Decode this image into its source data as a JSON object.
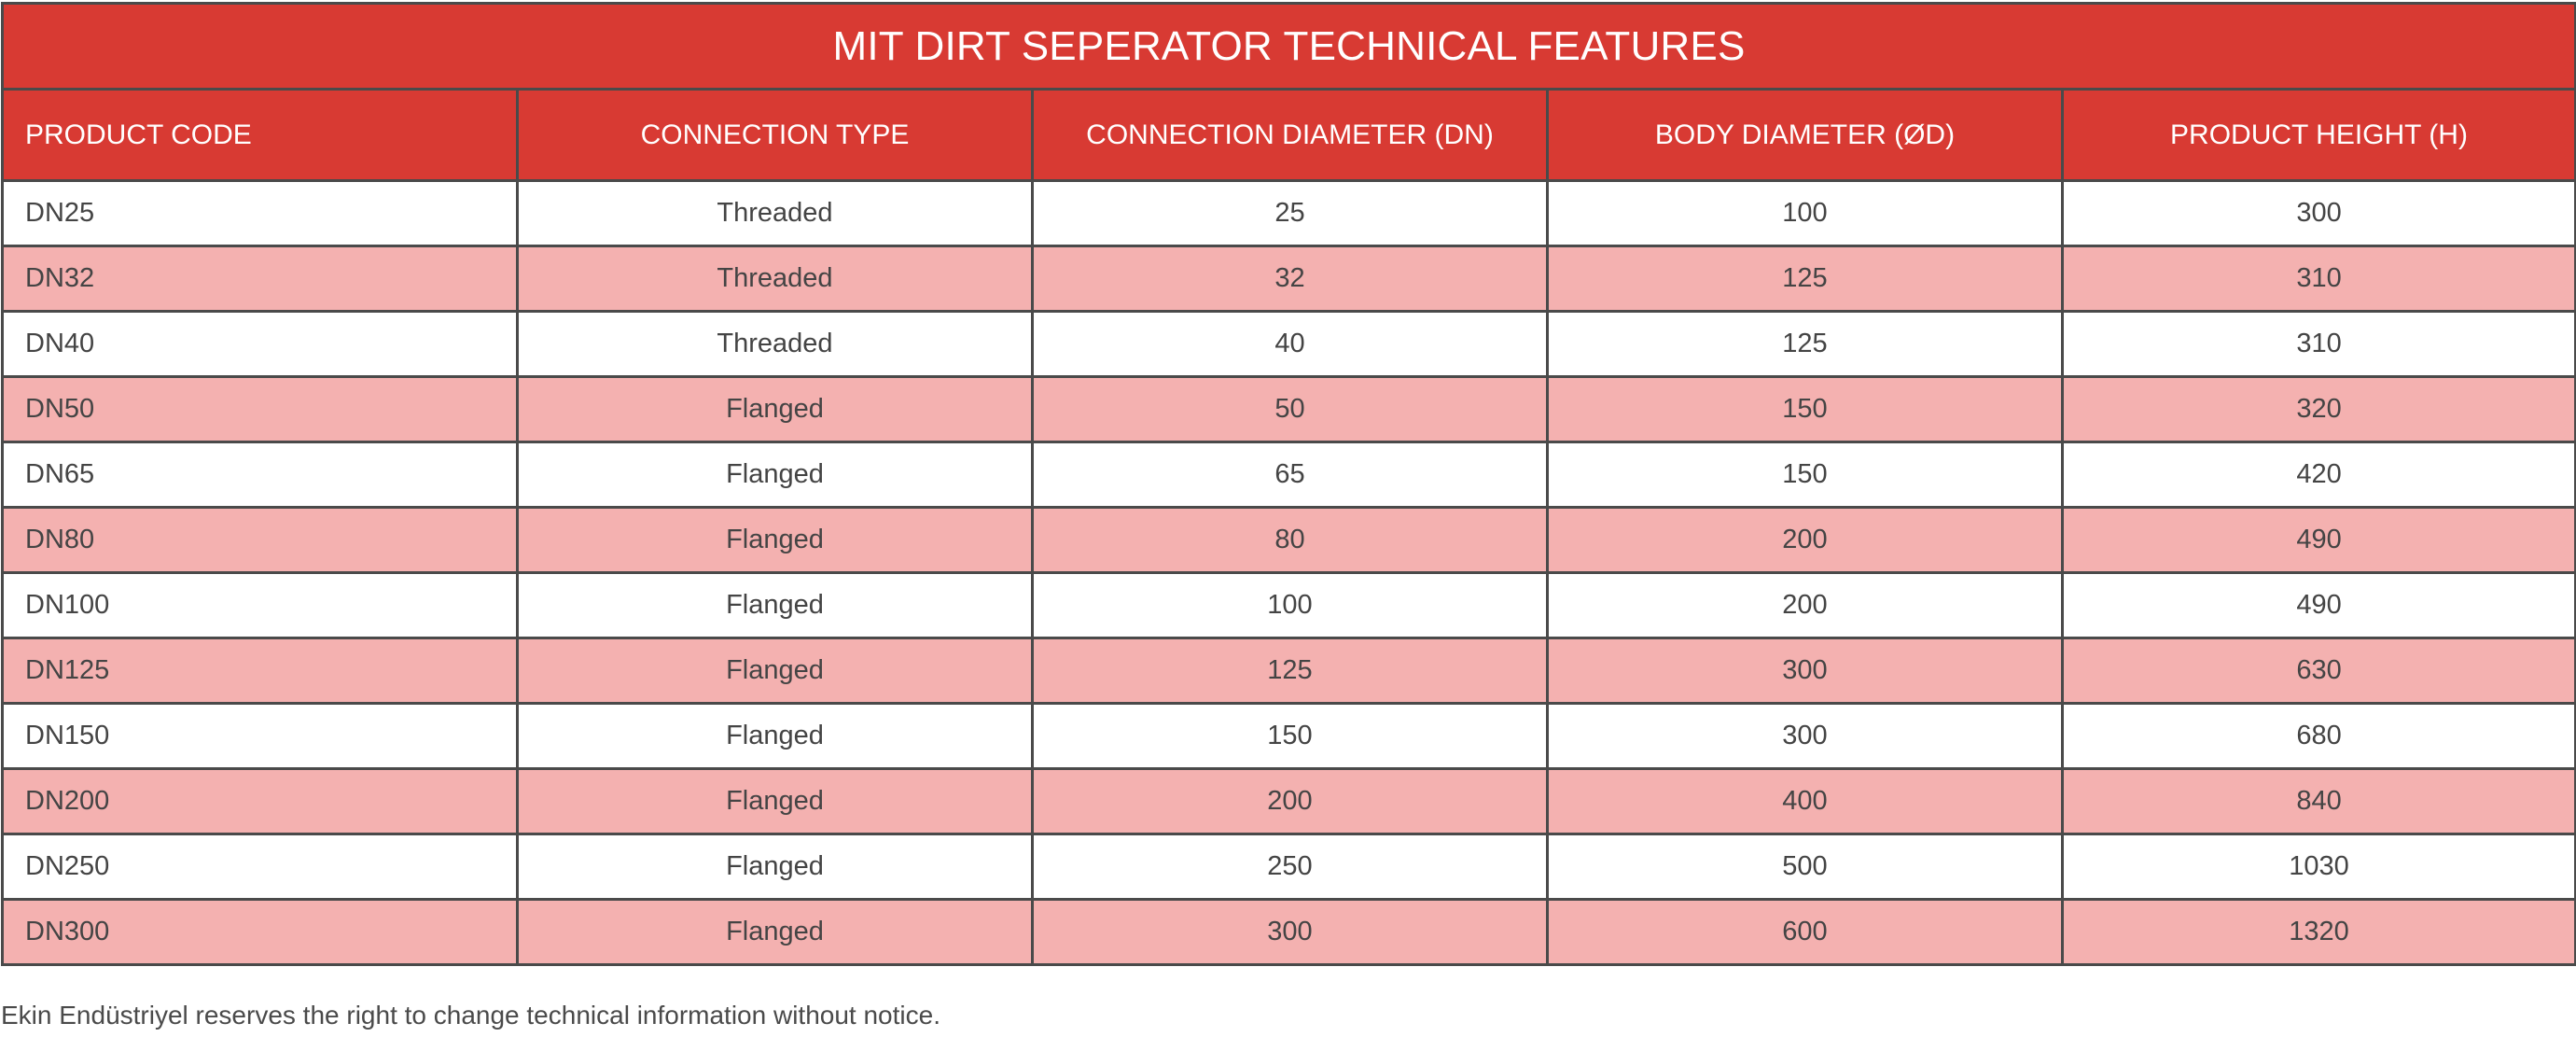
{
  "table": {
    "title": "MIT DIRT SEPERATOR TECHNICAL FEATURES",
    "headers": [
      "PRODUCT CODE",
      "CONNECTION TYPE",
      "CONNECTION DIAMETER (DN)",
      "BODY DIAMETER (ØD)",
      "PRODUCT HEIGHT (H)"
    ],
    "rows": [
      [
        "DN25",
        "Threaded",
        "25",
        "100",
        "300"
      ],
      [
        "DN32",
        "Threaded",
        "32",
        "125",
        "310"
      ],
      [
        "DN40",
        "Threaded",
        "40",
        "125",
        "310"
      ],
      [
        "DN50",
        "Flanged",
        "50",
        "150",
        "320"
      ],
      [
        "DN65",
        "Flanged",
        "65",
        "150",
        "420"
      ],
      [
        "DN80",
        "Flanged",
        "80",
        "200",
        "490"
      ],
      [
        "DN100",
        "Flanged",
        "100",
        "200",
        "490"
      ],
      [
        "DN125",
        "Flanged",
        "125",
        "300",
        "630"
      ],
      [
        "DN150",
        "Flanged",
        "150",
        "300",
        "680"
      ],
      [
        "DN200",
        "Flanged",
        "200",
        "400",
        "840"
      ],
      [
        "DN250",
        "Flanged",
        "250",
        "500",
        "1030"
      ],
      [
        "DN300",
        "Flanged",
        "300",
        "600",
        "1320"
      ]
    ]
  },
  "footnote": "Ekin Endüstriyel reserves the right to change technical information without notice.",
  "colors": {
    "header_red": "#d83a33",
    "stripe_pink": "#f4b1b0",
    "border": "#4a4a4a"
  }
}
